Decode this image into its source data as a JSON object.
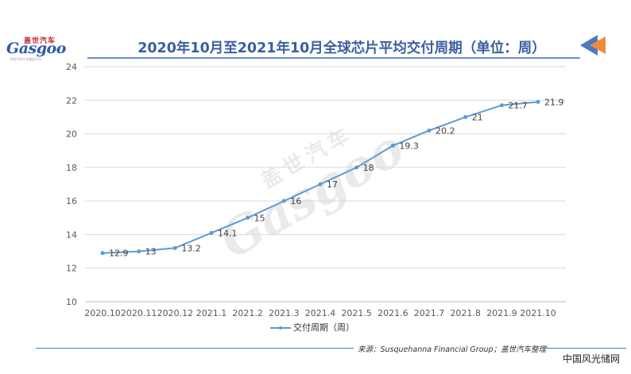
{
  "logo": {
    "cn": "盖世汽车",
    "en": "Gasgoo",
    "sub": "中国汽车产业服务平台"
  },
  "watermark": {
    "cn": "盖世汽车",
    "en": "Gasgoo"
  },
  "source": "来源：Susquehanna Financial Group；盖世汽车整理",
  "site": "中国风光储网",
  "colors": {
    "line": "#5b9bd5",
    "title": "#3a5fa0",
    "deco_blue": "#4a7ac0",
    "deco_orange": "#f08a3c"
  },
  "chart_data": {
    "type": "line",
    "title": "2020年10月至2021年10月全球芯片平均交付周期（单位：周）",
    "categories": [
      "2020.10",
      "2020.11",
      "2020.12",
      "2021.1",
      "2021.2",
      "2021.3",
      "2021.4",
      "2021.5",
      "2021.6",
      "2021.7",
      "2021.8",
      "2021.9",
      "2021.10"
    ],
    "series": [
      {
        "name": "交付周期（周）",
        "values": [
          12.9,
          13,
          13.2,
          14.1,
          15,
          16,
          17,
          18,
          19.3,
          20.2,
          21,
          21.7,
          21.9
        ]
      }
    ],
    "ylim": [
      10,
      24
    ],
    "yticks": [
      10,
      12,
      14,
      16,
      18,
      20,
      22,
      24
    ],
    "grid": "horizontal",
    "legend_position": "bottom",
    "data_labels": true
  }
}
